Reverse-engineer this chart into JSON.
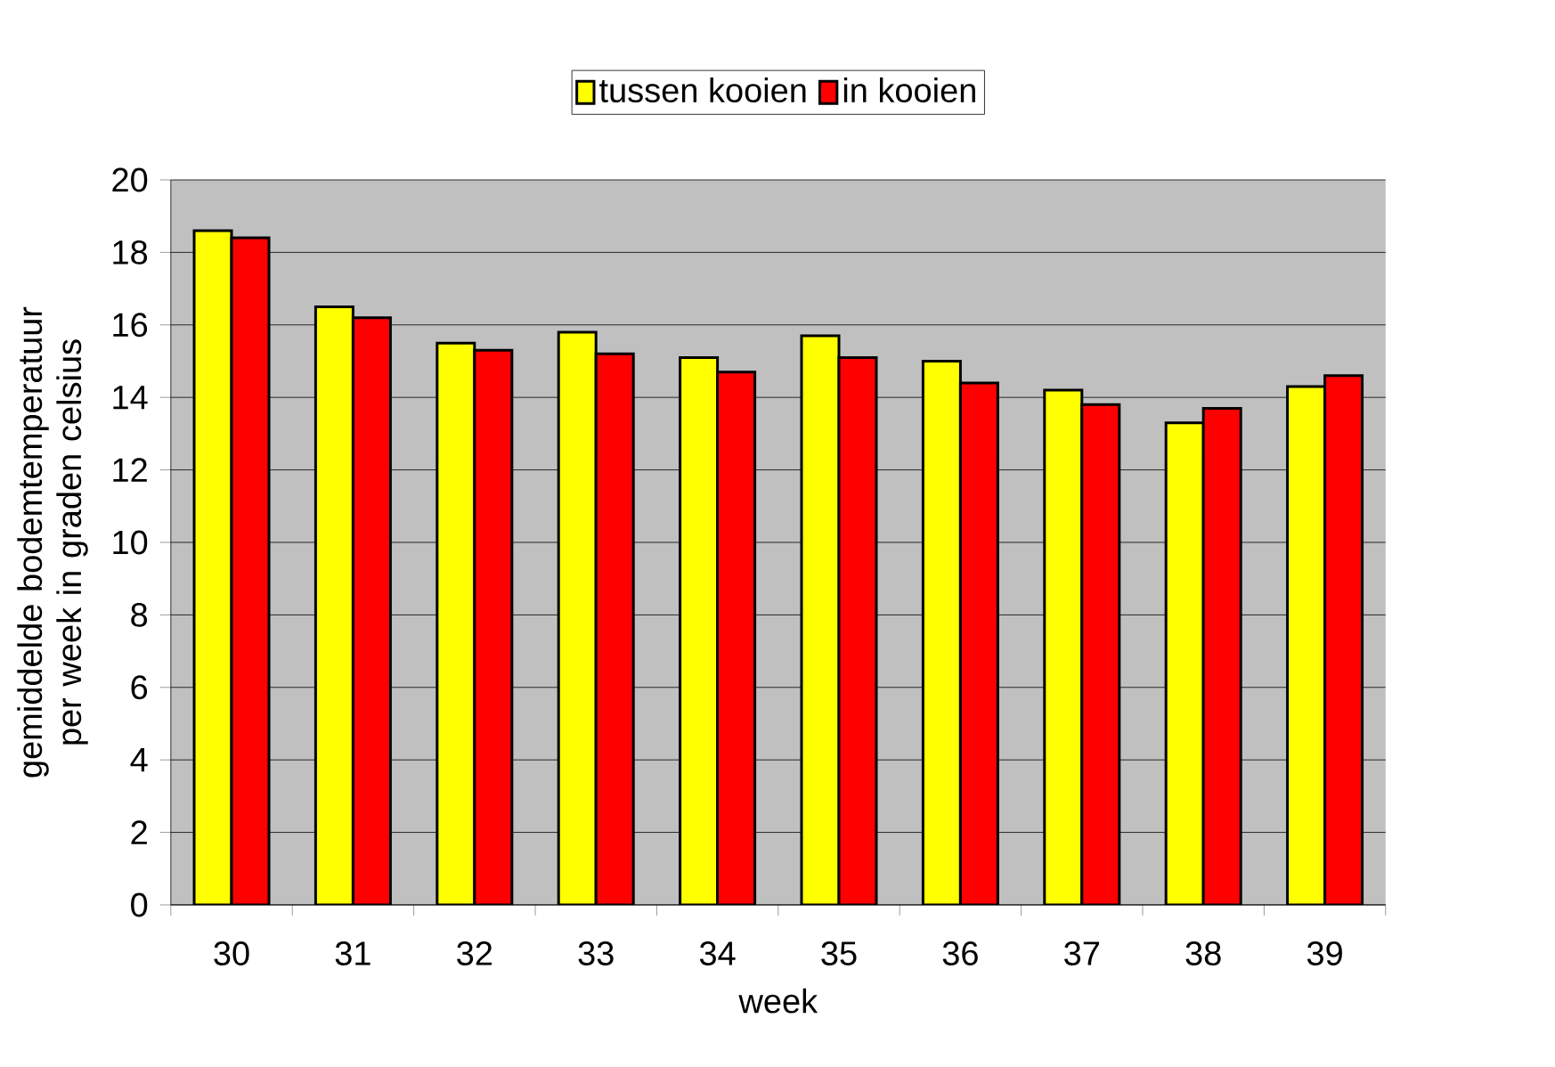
{
  "chart_data": {
    "type": "bar",
    "xlabel": "week",
    "ylabel": "gemiddelde bodemtemperatuur per week in graden celsius",
    "categories": [
      "30",
      "31",
      "32",
      "33",
      "34",
      "35",
      "36",
      "37",
      "38",
      "39"
    ],
    "series": [
      {
        "name": "tussen kooien",
        "color": "#ffff00",
        "values": [
          18.6,
          16.5,
          15.5,
          15.8,
          15.1,
          15.7,
          15.0,
          14.2,
          13.3,
          14.3
        ]
      },
      {
        "name": "in kooien",
        "color": "#ff0000",
        "values": [
          18.4,
          16.2,
          15.3,
          15.2,
          14.7,
          15.1,
          14.4,
          13.8,
          13.7,
          14.6
        ]
      }
    ],
    "ylim": [
      0,
      20
    ],
    "yticks": [
      0,
      2,
      4,
      6,
      8,
      10,
      12,
      14,
      16,
      18,
      20
    ],
    "grid": "y",
    "legend": "top"
  }
}
